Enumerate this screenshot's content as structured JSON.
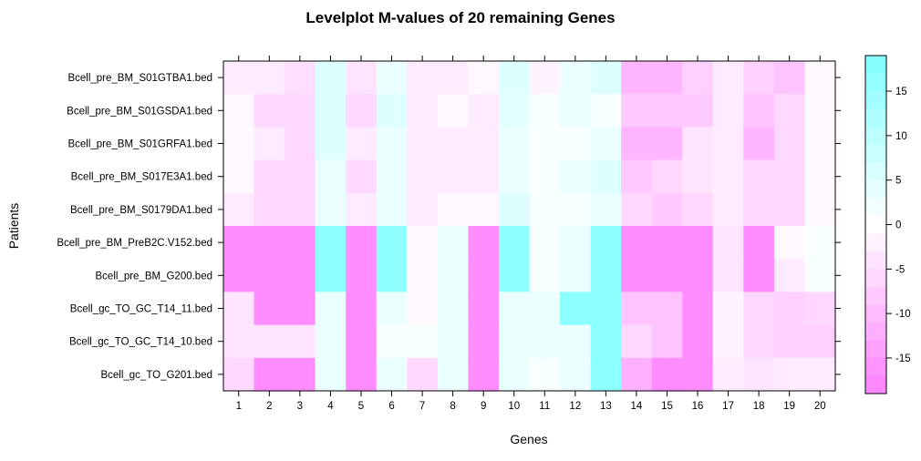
{
  "chart_data": {
    "type": "heatmap",
    "title": "Levelplot M-values of 20 remaining Genes",
    "xlabel": "Genes",
    "ylabel": "Patients",
    "x": [
      "1",
      "2",
      "3",
      "4",
      "5",
      "6",
      "7",
      "8",
      "9",
      "10",
      "11",
      "12",
      "13",
      "14",
      "15",
      "16",
      "17",
      "18",
      "19",
      "20"
    ],
    "y": [
      "Bcell_pre_BM_S01GTBA1.bed",
      "Bcell_pre_BM_S01GSDA1.bed",
      "Bcell_pre_BM_S01GRFA1.bed",
      "Bcell_pre_BM_S017E3A1.bed",
      "Bcell_pre_BM_S0179DA1.bed",
      "Bcell_pre_BM_PreB2C.V152.bed",
      "Bcell_pre_BM_G200.bed",
      "Bcell_gc_TO_GC_T14_11.bed",
      "Bcell_gc_TO_GC_T14_10.bed",
      "Bcell_gc_TO_G201.bed"
    ],
    "values": [
      [
        -3,
        -3,
        -5,
        5,
        -4,
        3,
        -3,
        -3,
        -1,
        5,
        -2,
        3,
        5,
        -11,
        -11,
        -7,
        -3,
        -7,
        -9,
        -1
      ],
      [
        -1,
        -6,
        -6,
        5,
        -6,
        5,
        -3,
        -1,
        -3,
        4,
        1,
        3,
        1,
        -8,
        -8,
        -8,
        -3,
        -9,
        -6,
        -1
      ],
      [
        -1,
        -3,
        -6,
        5,
        -3,
        3,
        -3,
        -3,
        -3,
        3,
        1,
        1,
        3,
        -11,
        -11,
        -4,
        -3,
        -11,
        -6,
        -1
      ],
      [
        -1,
        -6,
        -6,
        3,
        -6,
        3,
        -3,
        -3,
        -3,
        3,
        1,
        3,
        5,
        -8,
        -6,
        -4,
        -3,
        -6,
        -6,
        -1
      ],
      [
        -3,
        -6,
        -6,
        3,
        -3,
        3,
        -3,
        -1,
        -1,
        5,
        1,
        1,
        3,
        -6,
        -8,
        -6,
        -3,
        -6,
        -6,
        -1
      ],
      [
        -17,
        -17,
        -17,
        17,
        -17,
        17,
        -1,
        3,
        -17,
        17,
        1,
        3,
        17,
        -17,
        -17,
        -17,
        -4,
        -17,
        -1,
        1
      ],
      [
        -17,
        -17,
        -17,
        17,
        -17,
        17,
        -1,
        3,
        -17,
        17,
        1,
        3,
        17,
        -17,
        -17,
        -17,
        -4,
        -17,
        -3,
        1
      ],
      [
        -4,
        -17,
        -17,
        3,
        -17,
        3,
        -1,
        3,
        -17,
        3,
        3,
        17,
        17,
        -9,
        -9,
        -17,
        -2,
        -6,
        -7,
        -6
      ],
      [
        -4,
        -4,
        -4,
        3,
        -17,
        1,
        1,
        3,
        -17,
        3,
        3,
        3,
        17,
        -6,
        -9,
        -17,
        -2,
        -6,
        -7,
        -7
      ],
      [
        -6,
        -17,
        -17,
        3,
        -17,
        3,
        -6,
        3,
        -17,
        3,
        1,
        3,
        17,
        -12,
        -17,
        -17,
        -3,
        -4,
        -3,
        -3
      ]
    ],
    "zlim": [
      -19,
      19
    ],
    "colorbar_ticks": [
      "15",
      "10",
      "5",
      "0",
      "-5",
      "-10",
      "-15"
    ],
    "colorbar_tick_values": [
      15,
      10,
      5,
      0,
      -5,
      -10,
      -15
    ],
    "colors": {
      "low": "#ff80ff",
      "mid": "#ffffff",
      "high": "#80ffff"
    },
    "legend_position": "right"
  }
}
